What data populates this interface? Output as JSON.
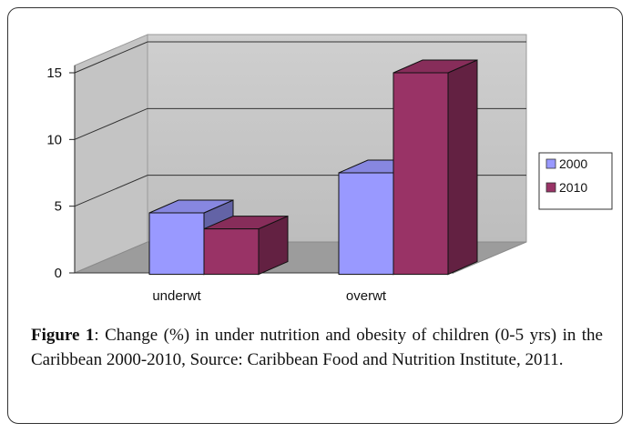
{
  "chart_data": {
    "type": "bar",
    "categories": [
      "underwt",
      "overwt"
    ],
    "series": [
      {
        "name": "2000",
        "values": [
          4.5,
          7.5
        ],
        "color": "#9999FF"
      },
      {
        "name": "2010",
        "values": [
          3.3,
          15.0
        ],
        "color": "#993366"
      }
    ],
    "ylim": [
      0,
      15
    ],
    "yticks": [
      "0",
      "5",
      "10",
      "15"
    ],
    "grid": true,
    "legend_position": "right",
    "style": "3d-clustered-column"
  },
  "caption": {
    "label": "Figure 1",
    "text": ": Change (%) in under nutrition and obesity of children (0-5 yrs) in the Caribbean 2000-2010, Source: Caribbean Food and Nutrition Institute, 2011."
  }
}
